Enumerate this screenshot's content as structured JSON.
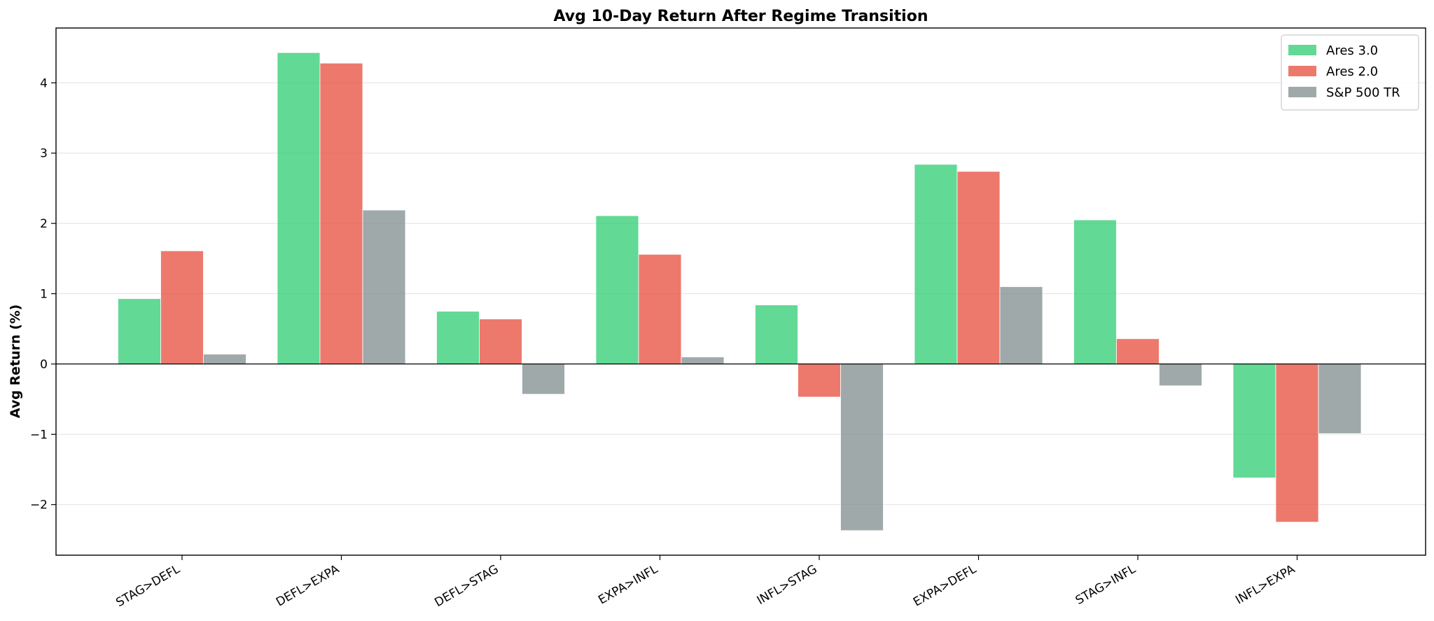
{
  "chart_data": {
    "type": "bar",
    "title": "Avg 10-Day Return After Regime Transition",
    "xlabel": "",
    "ylabel": "Avg Return (%)",
    "ylim": [
      -2.72,
      4.78
    ],
    "yticks": [
      -2,
      -1,
      0,
      1,
      2,
      3,
      4
    ],
    "ytick_labels": [
      "−2",
      "−1",
      "0",
      "1",
      "2",
      "3",
      "4"
    ],
    "grid": "y",
    "legend_position": "top-right",
    "categories": [
      "STAG>DEFL",
      "DEFL>EXPA",
      "DEFL>STAG",
      "EXPA>INFL",
      "INFL>STAG",
      "EXPA>DEFL",
      "STAG>INFL",
      "INFL>EXPA"
    ],
    "series": [
      {
        "name": "Ares 3.0",
        "color": "#2ecc71",
        "values": [
          0.93,
          4.43,
          0.75,
          2.11,
          0.84,
          2.84,
          2.05,
          -1.62
        ]
      },
      {
        "name": "Ares 2.0",
        "color": "#e74c3c",
        "values": [
          1.61,
          4.28,
          0.64,
          1.56,
          -0.47,
          2.74,
          0.36,
          -2.25
        ]
      },
      {
        "name": "S&P 500 TR",
        "color": "#7f8c8d",
        "values": [
          0.14,
          2.19,
          -0.43,
          0.1,
          -2.37,
          1.1,
          -0.31,
          -0.99
        ]
      }
    ]
  }
}
